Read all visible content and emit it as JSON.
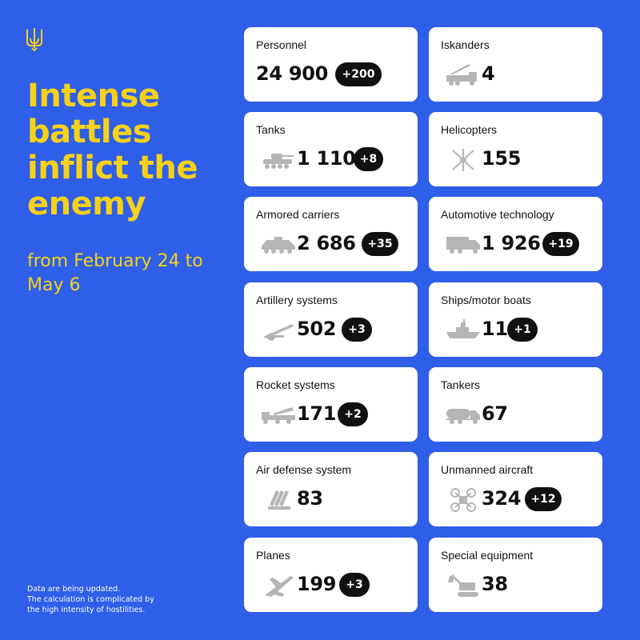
{
  "headline": {
    "title": "Intense battles inflict the enemy",
    "period": "from February 24 to May 6"
  },
  "footnote": {
    "line1": "Data are being updated.",
    "line2": "The calculation is complicated by",
    "line3": "the high intensity of hostilities."
  },
  "cards": [
    {
      "label": "Personnel",
      "value": "24 900",
      "delta": "+200",
      "icon": "none"
    },
    {
      "label": "Iskanders",
      "value": "4",
      "icon": "missile-launcher-icon"
    },
    {
      "label": "Tanks",
      "value": "1 110",
      "delta": "+8",
      "icon": "tank-icon"
    },
    {
      "label": "Helicopters",
      "value": "155",
      "icon": "helicopter-icon"
    },
    {
      "label": "Armored carriers",
      "value": "2 686",
      "delta": "+35",
      "icon": "armored-carrier-icon"
    },
    {
      "label": "Automotive technology",
      "value": "1 926",
      "delta": "+19",
      "icon": "truck-icon"
    },
    {
      "label": "Artillery systems",
      "value": "502",
      "delta": "+3",
      "icon": "artillery-icon"
    },
    {
      "label": "Ships/motor boats",
      "value": "11",
      "delta": "+1",
      "icon": "ship-icon"
    },
    {
      "label": "Rocket systems",
      "value": "171",
      "delta": "+2",
      "icon": "rocket-system-icon"
    },
    {
      "label": "Tankers",
      "value": "67",
      "icon": "tanker-truck-icon"
    },
    {
      "label": "Air defense system",
      "value": "83",
      "icon": "air-defense-icon"
    },
    {
      "label": "Unmanned aircraft",
      "value": "324",
      "delta": "+12",
      "icon": "drone-icon"
    },
    {
      "label": "Planes",
      "value": "199",
      "delta": "+3",
      "icon": "plane-icon"
    },
    {
      "label": "Special equipment",
      "value": "38",
      "icon": "excavator-icon"
    }
  ],
  "colors": {
    "background": "#2f5fe8",
    "accent": "#f7d117",
    "card": "#ffffff",
    "badge": "#111111"
  }
}
